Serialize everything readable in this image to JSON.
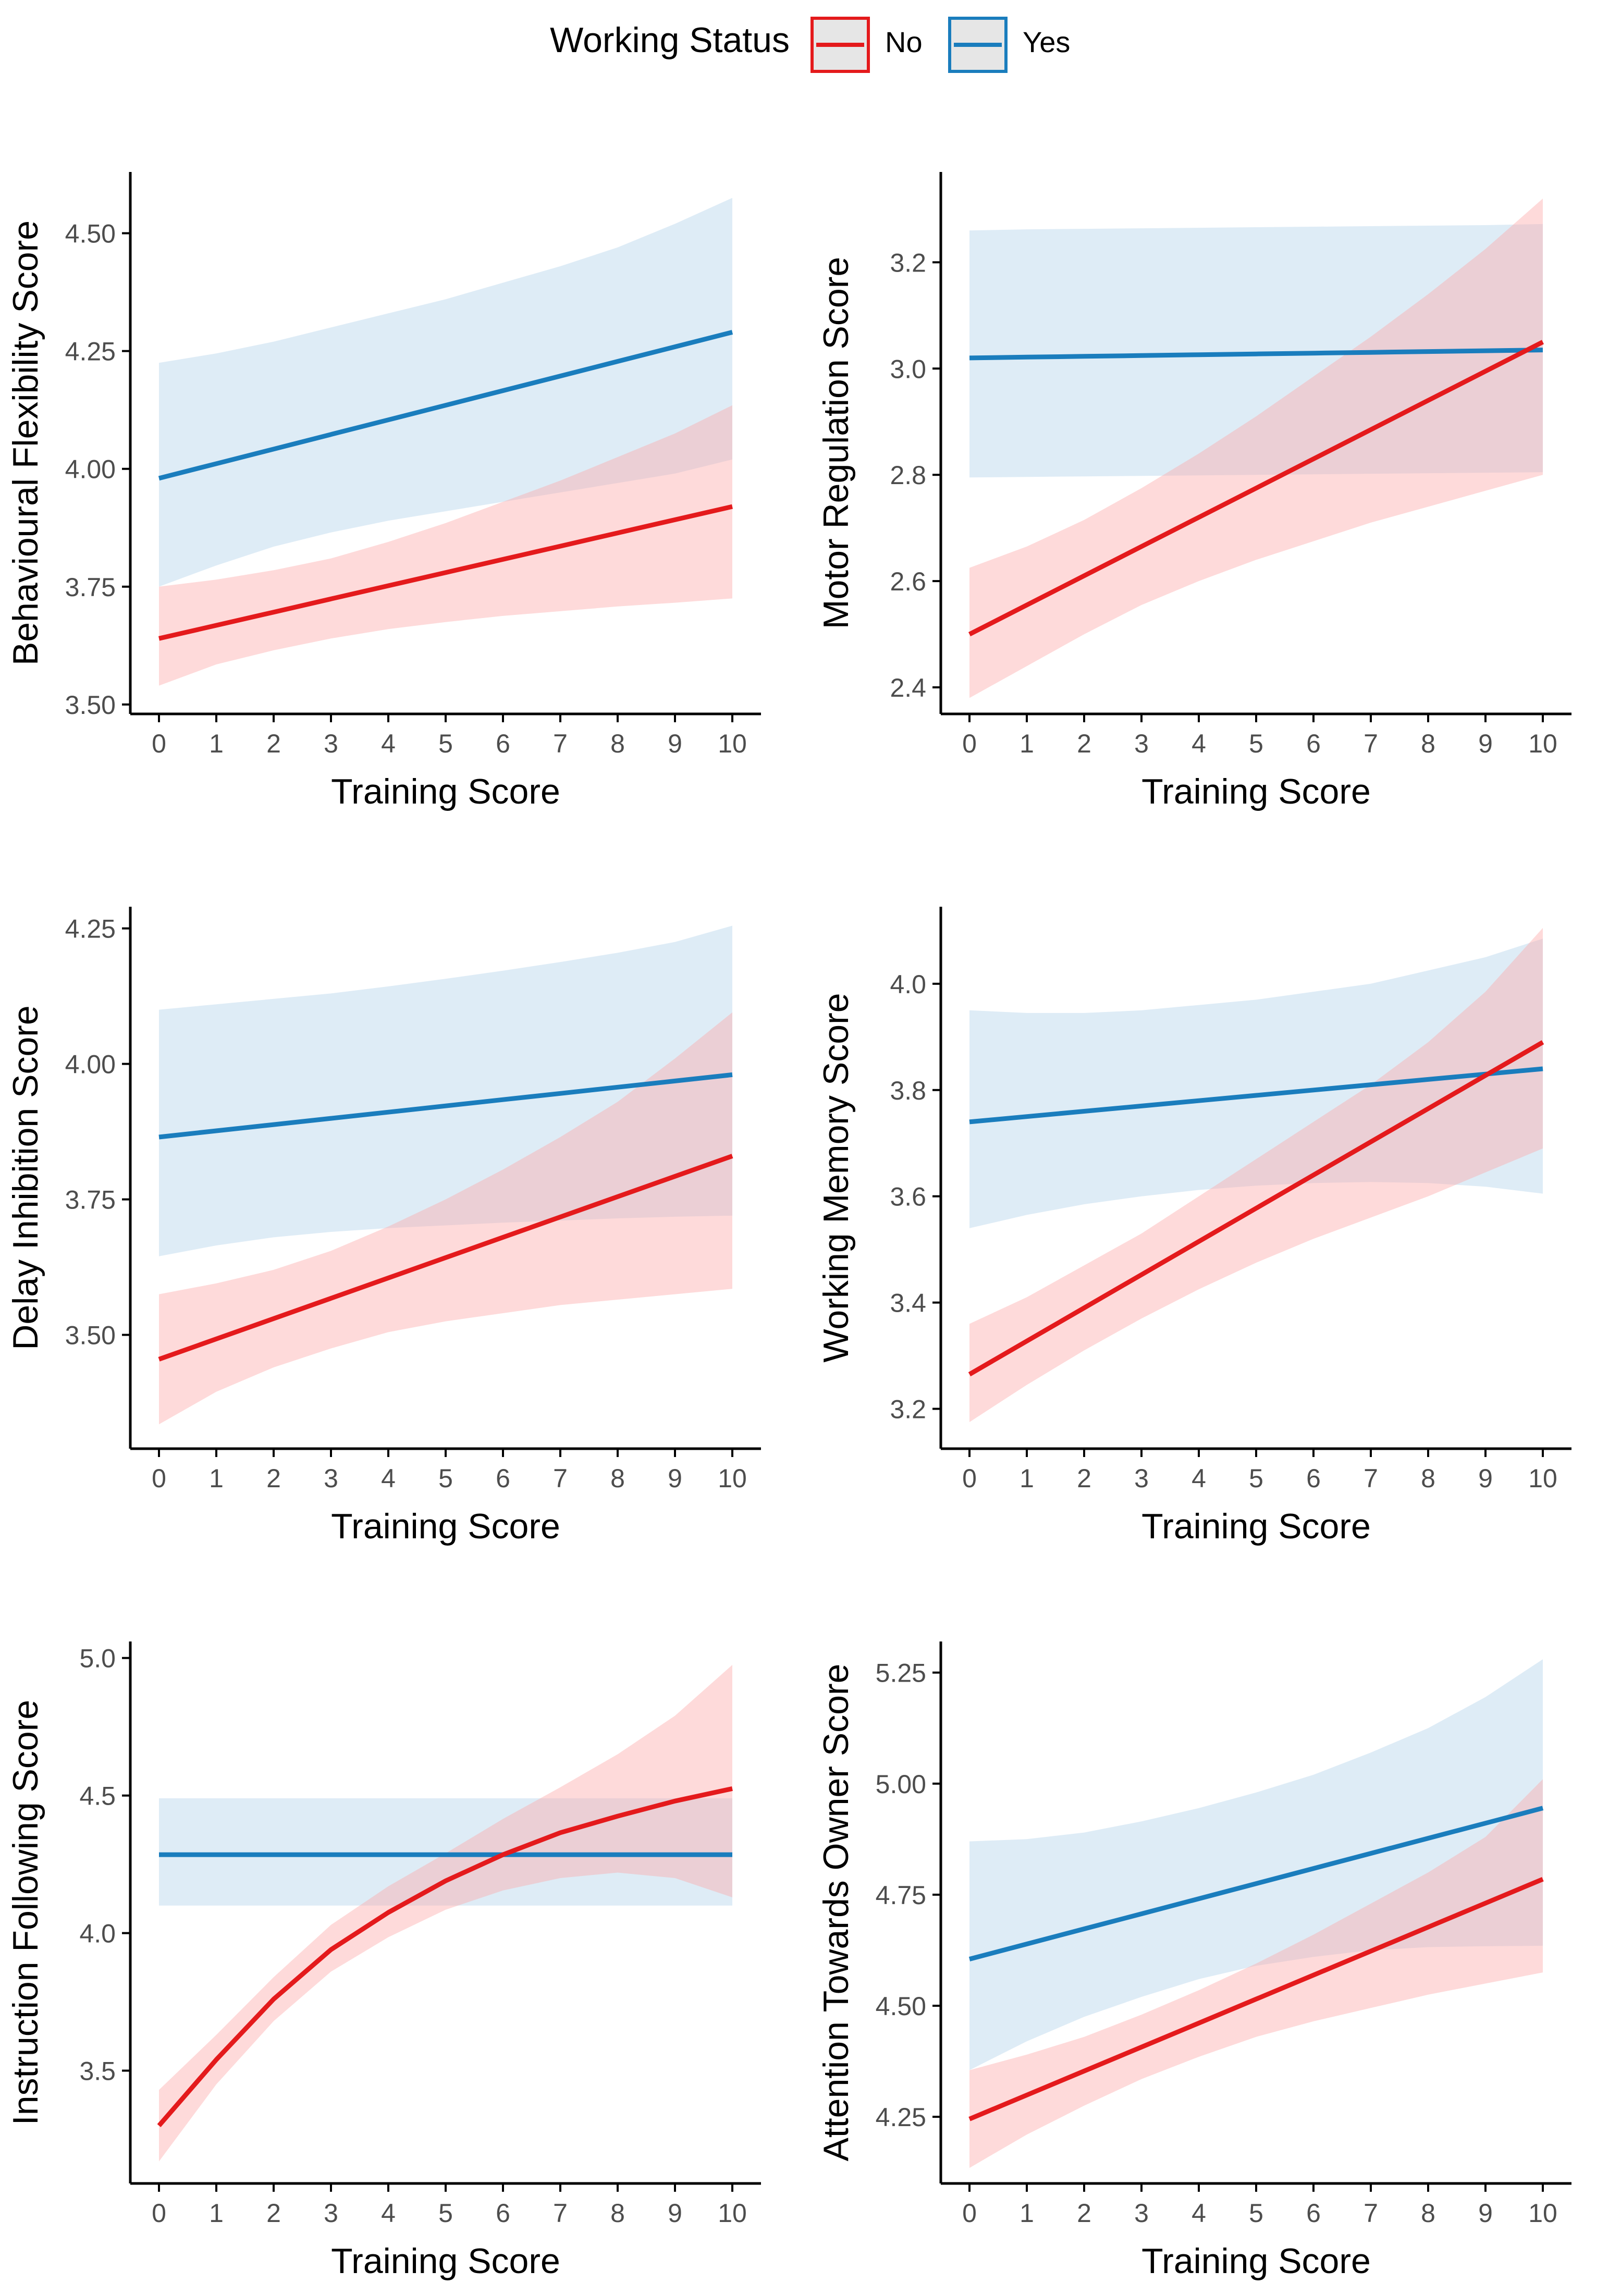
{
  "legend": {
    "title": "Working Status",
    "entries": [
      {
        "label": "No",
        "color": "#e41a1c",
        "fill": "#fdd9d9"
      },
      {
        "label": "Yes",
        "color": "#1a7dbd",
        "fill": "#dbe9f4"
      }
    ]
  },
  "chart_data": [
    {
      "type": "line",
      "xlabel": "Training Score",
      "ylabel": "Behavioural Flexibility Score",
      "x": [
        0,
        1,
        2,
        3,
        4,
        5,
        6,
        7,
        8,
        9,
        10
      ],
      "xticks": [
        0,
        1,
        2,
        3,
        4,
        5,
        6,
        7,
        8,
        9,
        10
      ],
      "yticks": [
        3.5,
        3.75,
        4.0,
        4.25,
        4.5
      ],
      "ytick_labels": [
        "3.50",
        "3.75",
        "4.00",
        "4.25",
        "4.50"
      ],
      "ylim": [
        3.48,
        4.63
      ],
      "series": [
        {
          "name": "No",
          "values": [
            3.64,
            3.668,
            3.696,
            3.724,
            3.752,
            3.78,
            3.808,
            3.836,
            3.864,
            3.892,
            3.92
          ],
          "lower": [
            3.54,
            3.585,
            3.615,
            3.64,
            3.66,
            3.675,
            3.688,
            3.698,
            3.708,
            3.716,
            3.725
          ],
          "upper": [
            3.75,
            3.765,
            3.785,
            3.81,
            3.845,
            3.885,
            3.93,
            3.975,
            4.025,
            4.075,
            4.135
          ]
        },
        {
          "name": "Yes",
          "values": [
            3.98,
            4.011,
            4.042,
            4.073,
            4.104,
            4.135,
            4.166,
            4.197,
            4.228,
            4.259,
            4.29
          ],
          "lower": [
            3.75,
            3.795,
            3.835,
            3.865,
            3.89,
            3.91,
            3.93,
            3.95,
            3.97,
            3.99,
            4.02
          ],
          "upper": [
            4.225,
            4.245,
            4.27,
            4.3,
            4.33,
            4.36,
            4.395,
            4.43,
            4.47,
            4.52,
            4.575
          ]
        }
      ]
    },
    {
      "type": "line",
      "xlabel": "Training Score",
      "ylabel": "Motor Regulation Score",
      "x": [
        0,
        1,
        2,
        3,
        4,
        5,
        6,
        7,
        8,
        9,
        10
      ],
      "xticks": [
        0,
        1,
        2,
        3,
        4,
        5,
        6,
        7,
        8,
        9,
        10
      ],
      "yticks": [
        2.4,
        2.6,
        2.8,
        3.0,
        3.2
      ],
      "ytick_labels": [
        "2.4",
        "2.6",
        "2.8",
        "3.0",
        "3.2"
      ],
      "ylim": [
        2.35,
        3.37
      ],
      "series": [
        {
          "name": "No",
          "values": [
            2.5,
            2.555,
            2.61,
            2.665,
            2.72,
            2.775,
            2.83,
            2.885,
            2.94,
            2.995,
            3.05
          ],
          "lower": [
            2.38,
            2.44,
            2.5,
            2.555,
            2.6,
            2.64,
            2.675,
            2.71,
            2.74,
            2.77,
            2.8
          ],
          "upper": [
            2.625,
            2.665,
            2.715,
            2.775,
            2.84,
            2.91,
            2.985,
            3.06,
            3.14,
            3.225,
            3.32
          ]
        },
        {
          "name": "Yes",
          "values": [
            3.02,
            3.0215,
            3.023,
            3.0245,
            3.026,
            3.0275,
            3.029,
            3.0305,
            3.032,
            3.0335,
            3.035
          ],
          "lower": [
            2.795,
            2.796,
            2.797,
            2.798,
            2.799,
            2.8,
            2.801,
            2.802,
            2.803,
            2.804,
            2.805
          ],
          "upper": [
            3.26,
            3.262,
            3.263,
            3.264,
            3.265,
            3.266,
            3.267,
            3.268,
            3.269,
            3.27,
            3.272
          ]
        }
      ]
    },
    {
      "type": "line",
      "xlabel": "Training Score",
      "ylabel": "Delay Inhibition Score",
      "x": [
        0,
        1,
        2,
        3,
        4,
        5,
        6,
        7,
        8,
        9,
        10
      ],
      "xticks": [
        0,
        1,
        2,
        3,
        4,
        5,
        6,
        7,
        8,
        9,
        10
      ],
      "yticks": [
        3.5,
        3.75,
        4.0,
        4.25
      ],
      "ytick_labels": [
        "3.50",
        "3.75",
        "4.00",
        "4.25"
      ],
      "ylim": [
        3.29,
        4.29
      ],
      "series": [
        {
          "name": "No",
          "values": [
            3.455,
            3.4925,
            3.53,
            3.5675,
            3.605,
            3.6425,
            3.68,
            3.7175,
            3.755,
            3.7925,
            3.83
          ],
          "lower": [
            3.335,
            3.395,
            3.44,
            3.475,
            3.505,
            3.525,
            3.54,
            3.555,
            3.565,
            3.575,
            3.585
          ],
          "upper": [
            3.575,
            3.595,
            3.62,
            3.655,
            3.7,
            3.75,
            3.805,
            3.865,
            3.93,
            4.01,
            4.095
          ]
        },
        {
          "name": "Yes",
          "values": [
            3.865,
            3.8765,
            3.888,
            3.8995,
            3.911,
            3.9225,
            3.934,
            3.9455,
            3.957,
            3.9685,
            3.98
          ],
          "lower": [
            3.645,
            3.665,
            3.68,
            3.69,
            3.697,
            3.702,
            3.707,
            3.711,
            3.715,
            3.718,
            3.72
          ],
          "upper": [
            4.1,
            4.11,
            4.12,
            4.13,
            4.143,
            4.157,
            4.172,
            4.188,
            4.205,
            4.225,
            4.255
          ]
        }
      ]
    },
    {
      "type": "line",
      "xlabel": "Training Score",
      "ylabel": "Working Memory Score",
      "x": [
        0,
        1,
        2,
        3,
        4,
        5,
        6,
        7,
        8,
        9,
        10
      ],
      "xticks": [
        0,
        1,
        2,
        3,
        4,
        5,
        6,
        7,
        8,
        9,
        10
      ],
      "yticks": [
        3.2,
        3.4,
        3.6,
        3.8,
        4.0
      ],
      "ytick_labels": [
        "3.2",
        "3.4",
        "3.6",
        "3.8",
        "4.0"
      ],
      "ylim": [
        3.125,
        4.145
      ],
      "series": [
        {
          "name": "No",
          "values": [
            3.265,
            3.3275,
            3.39,
            3.4525,
            3.515,
            3.5775,
            3.64,
            3.7025,
            3.765,
            3.8275,
            3.89
          ],
          "lower": [
            3.175,
            3.245,
            3.31,
            3.37,
            3.425,
            3.475,
            3.52,
            3.56,
            3.6,
            3.645,
            3.69
          ],
          "upper": [
            3.36,
            3.41,
            3.47,
            3.53,
            3.6,
            3.67,
            3.74,
            3.81,
            3.89,
            3.985,
            4.105
          ]
        },
        {
          "name": "Yes",
          "values": [
            3.74,
            3.75,
            3.76,
            3.77,
            3.78,
            3.79,
            3.8,
            3.81,
            3.82,
            3.83,
            3.84
          ],
          "lower": [
            3.54,
            3.565,
            3.585,
            3.6,
            3.612,
            3.62,
            3.625,
            3.627,
            3.625,
            3.618,
            3.605
          ],
          "upper": [
            3.95,
            3.945,
            3.945,
            3.95,
            3.96,
            3.97,
            3.985,
            4.0,
            4.025,
            4.05,
            4.085
          ]
        }
      ]
    },
    {
      "type": "line",
      "xlabel": "Training Score",
      "ylabel": "Instruction Following Score",
      "x": [
        0,
        1,
        2,
        3,
        4,
        5,
        6,
        7,
        8,
        9,
        10
      ],
      "xticks": [
        0,
        1,
        2,
        3,
        4,
        5,
        6,
        7,
        8,
        9,
        10
      ],
      "yticks": [
        3.5,
        4.0,
        4.5,
        5.0
      ],
      "ytick_labels": [
        "3.5",
        "4.0",
        "4.5",
        "5.0"
      ],
      "ylim": [
        3.09,
        5.06
      ],
      "series": [
        {
          "name": "No",
          "values": [
            3.3,
            3.54,
            3.76,
            3.94,
            4.075,
            4.19,
            4.285,
            4.365,
            4.425,
            4.48,
            4.525
          ],
          "lower": [
            3.17,
            3.45,
            3.68,
            3.86,
            3.985,
            4.085,
            4.155,
            4.2,
            4.22,
            4.2,
            4.13
          ],
          "upper": [
            3.43,
            3.63,
            3.84,
            4.03,
            4.17,
            4.29,
            4.415,
            4.53,
            4.65,
            4.79,
            4.975
          ]
        },
        {
          "name": "Yes",
          "values": [
            4.285,
            4.285,
            4.285,
            4.285,
            4.285,
            4.285,
            4.285,
            4.285,
            4.285,
            4.285,
            4.285
          ],
          "lower": [
            4.1,
            4.1,
            4.1,
            4.1,
            4.1,
            4.1,
            4.1,
            4.1,
            4.1,
            4.1,
            4.1
          ],
          "upper": [
            4.49,
            4.49,
            4.49,
            4.49,
            4.49,
            4.49,
            4.49,
            4.49,
            4.49,
            4.49,
            4.49
          ]
        }
      ]
    },
    {
      "type": "line",
      "xlabel": "Training Score",
      "ylabel": "Attention Towards Owner Score",
      "x": [
        0,
        1,
        2,
        3,
        4,
        5,
        6,
        7,
        8,
        9,
        10
      ],
      "xticks": [
        0,
        1,
        2,
        3,
        4,
        5,
        6,
        7,
        8,
        9,
        10
      ],
      "yticks": [
        4.25,
        4.5,
        4.75,
        5.0,
        5.25
      ],
      "ytick_labels": [
        "4.25",
        "4.50",
        "4.75",
        "5.00",
        "5.25"
      ],
      "ylim": [
        4.1,
        5.32
      ],
      "series": [
        {
          "name": "No",
          "values": [
            4.245,
            4.299,
            4.353,
            4.407,
            4.461,
            4.515,
            4.569,
            4.623,
            4.677,
            4.731,
            4.785
          ],
          "lower": [
            4.135,
            4.21,
            4.275,
            4.335,
            4.385,
            4.43,
            4.465,
            4.495,
            4.525,
            4.55,
            4.575
          ],
          "upper": [
            4.355,
            4.39,
            4.43,
            4.48,
            4.535,
            4.595,
            4.66,
            4.73,
            4.8,
            4.88,
            5.01
          ]
        },
        {
          "name": "Yes",
          "values": [
            4.605,
            4.639,
            4.673,
            4.707,
            4.741,
            4.775,
            4.809,
            4.843,
            4.877,
            4.911,
            4.945
          ],
          "lower": [
            4.355,
            4.42,
            4.475,
            4.52,
            4.56,
            4.59,
            4.61,
            4.625,
            4.632,
            4.634,
            4.635
          ],
          "upper": [
            4.87,
            4.875,
            4.89,
            4.915,
            4.945,
            4.98,
            5.02,
            5.07,
            5.125,
            5.195,
            5.28
          ]
        }
      ]
    }
  ]
}
